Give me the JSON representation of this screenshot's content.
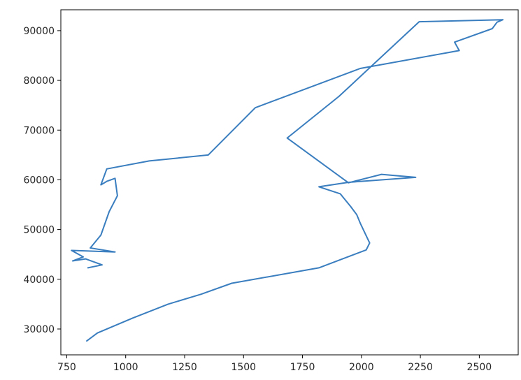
{
  "chart_data": {
    "type": "line",
    "title": "",
    "xlabel": "",
    "ylabel": "",
    "xlim": [
      725,
      2665
    ],
    "ylim": [
      24800,
      94200
    ],
    "grid": false,
    "line_color": "#3a7ebf",
    "x_ticks": [
      750,
      1000,
      1250,
      1500,
      1750,
      2000,
      2250,
      2500
    ],
    "y_ticks": [
      30000,
      40000,
      50000,
      60000,
      70000,
      80000,
      90000
    ],
    "x_tick_labels": [
      "750",
      "1000",
      "1250",
      "1500",
      "1750",
      "2000",
      "2250",
      "2500"
    ],
    "y_tick_labels": [
      "30000",
      "40000",
      "50000",
      "60000",
      "70000",
      "80000",
      "90000"
    ],
    "series": [
      {
        "x": [
          835,
          880,
          1030,
          1180,
          1320,
          1450,
          1820,
          2020,
          2035,
          2030,
          1995,
          1980,
          1955,
          1910,
          1820,
          1945,
          2230,
          2085,
          1945,
          1685,
          1905,
          2245,
          2600,
          2575,
          2555,
          2395,
          2415,
          1995,
          1550,
          1350,
          1100,
          920,
          895,
          920,
          955,
          965,
          930,
          895,
          850,
          955,
          770,
          820,
          775,
          830,
          900,
          840
        ],
        "y": [
          27600,
          29200,
          32200,
          35000,
          37000,
          39200,
          42300,
          45900,
          47300,
          47800,
          51300,
          53000,
          54600,
          57200,
          58600,
          59500,
          60500,
          61100,
          59400,
          68400,
          76800,
          91800,
          92200,
          91700,
          90400,
          87700,
          86000,
          82400,
          74500,
          65000,
          63800,
          62200,
          59000,
          59700,
          60300,
          56800,
          53600,
          48900,
          46300,
          45500,
          45800,
          44500,
          43700,
          44100,
          42900,
          42300
        ]
      }
    ]
  }
}
